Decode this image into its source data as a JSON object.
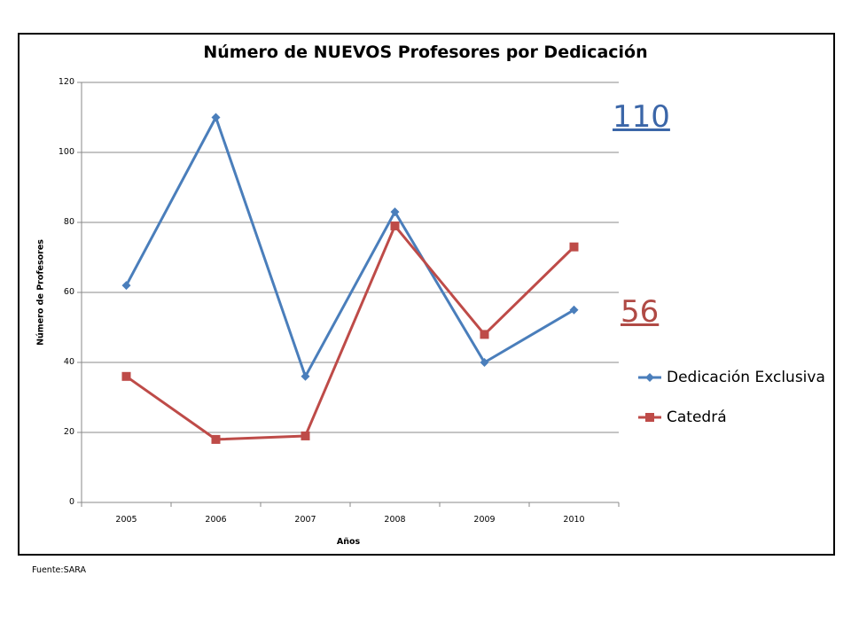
{
  "chart_data": {
    "type": "line",
    "title": "Número de NUEVOS  Profesores por Dedicación",
    "xlabel": "Años",
    "ylabel": "Número de Profesores",
    "categories": [
      "2005",
      "2006",
      "2007",
      "2008",
      "2009",
      "2010"
    ],
    "ylim": [
      0,
      120
    ],
    "yticks": [
      "0",
      "20",
      "40",
      "60",
      "80",
      "100",
      "120"
    ],
    "grid": true,
    "legend_position": "right",
    "series": [
      {
        "name": "Dedicación Exclusiva",
        "values": [
          62,
          110,
          36,
          83,
          40,
          55
        ],
        "color": "#4a7ebb",
        "marker": "diamond"
      },
      {
        "name": "Catedrá",
        "values": [
          36,
          18,
          19,
          79,
          48,
          73
        ],
        "color": "#be4b48",
        "marker": "square"
      }
    ],
    "annotations": [
      {
        "text": "110",
        "color": "#3b66a8"
      },
      {
        "text": "56",
        "color": "#b04a45"
      }
    ]
  },
  "footer": {
    "source": "Fuente:SARA"
  }
}
